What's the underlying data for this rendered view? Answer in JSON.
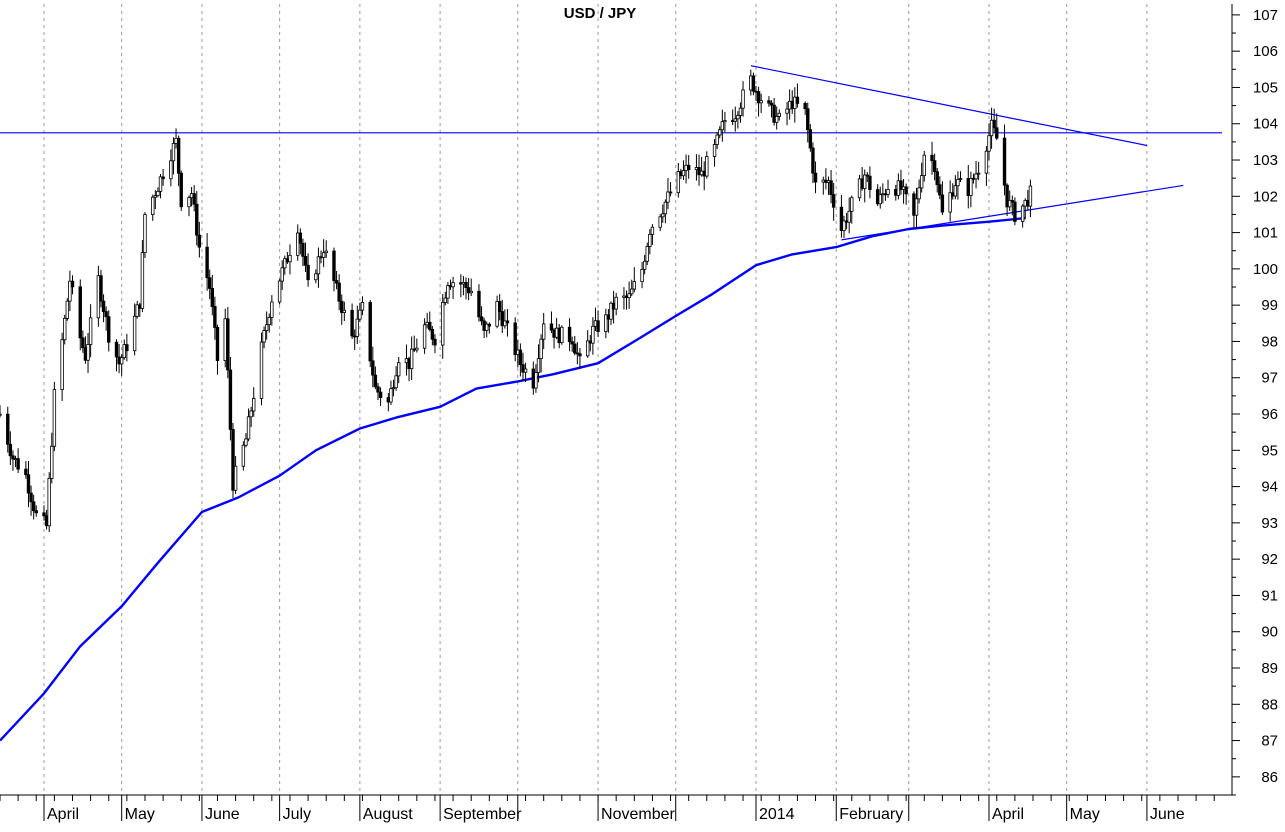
{
  "chart_data": {
    "type": "line",
    "title": "USD / JPY",
    "xlabel": "",
    "ylabel": "",
    "ylim": [
      85.5,
      107.3
    ],
    "yticks": [
      86,
      87,
      88,
      89,
      90,
      91,
      92,
      93,
      94,
      95,
      96,
      97,
      98,
      99,
      100,
      101,
      102,
      103,
      104,
      105,
      106,
      107
    ],
    "y_axis_side": "right",
    "grid": "vertical dashed lines at month starts",
    "legend": "none",
    "x_range": [
      "2013-03-15",
      "2014-06-30"
    ],
    "month_starts": [
      "2013-04-01",
      "2013-05-01",
      "2013-06-01",
      "2013-07-01",
      "2013-08-01",
      "2013-09-01",
      "2013-10-01",
      "2013-11-01",
      "2013-12-01",
      "2014-01-01",
      "2014-02-01",
      "2014-03-01",
      "2014-04-01",
      "2014-05-01",
      "2014-06-01"
    ],
    "month_labels": [
      "April",
      "May",
      "June",
      "July",
      "August",
      "September",
      "",
      "November",
      "",
      "2014",
      "February",
      "",
      "April",
      "May",
      "June"
    ],
    "colors": {
      "price": "#000000",
      "moving_average": "#0000ff",
      "trendlines": "#0000ff",
      "grid": "#999999"
    },
    "series": [
      {
        "style": "bars",
        "values_note": "daily close approximations",
        "points": [
          [
            "2013-03-15",
            96.0
          ],
          [
            "2013-03-20",
            94.8
          ],
          [
            "2013-03-25",
            94.3
          ],
          [
            "2013-03-29",
            93.2
          ],
          [
            "2013-04-02",
            92.9
          ],
          [
            "2013-04-05",
            96.5
          ],
          [
            "2013-04-08",
            98.0
          ],
          [
            "2013-04-11",
            99.7
          ],
          [
            "2013-04-15",
            98.1
          ],
          [
            "2013-04-17",
            97.6
          ],
          [
            "2013-04-22",
            99.7
          ],
          [
            "2013-04-26",
            98.2
          ],
          [
            "2013-04-30",
            97.4
          ],
          [
            "2013-05-03",
            97.9
          ],
          [
            "2013-05-08",
            99.1
          ],
          [
            "2013-05-10",
            101.5
          ],
          [
            "2013-05-15",
            102.3
          ],
          [
            "2013-05-20",
            103.2
          ],
          [
            "2013-05-22",
            103.5
          ],
          [
            "2013-05-24",
            101.9
          ],
          [
            "2013-05-28",
            102.1
          ],
          [
            "2013-05-31",
            100.6
          ],
          [
            "2013-06-04",
            99.5
          ],
          [
            "2013-06-07",
            97.5
          ],
          [
            "2013-06-10",
            98.6
          ],
          [
            "2013-06-13",
            94.1
          ],
          [
            "2013-06-18",
            95.3
          ],
          [
            "2013-06-24",
            97.8
          ],
          [
            "2013-06-28",
            99.2
          ],
          [
            "2013-07-03",
            100.1
          ],
          [
            "2013-07-08",
            101.2
          ],
          [
            "2013-07-12",
            99.5
          ],
          [
            "2013-07-18",
            100.6
          ],
          [
            "2013-07-23",
            99.4
          ],
          [
            "2013-07-29",
            98.1
          ],
          [
            "2013-08-02",
            98.9
          ],
          [
            "2013-08-07",
            96.7
          ],
          [
            "2013-08-12",
            96.3
          ],
          [
            "2013-08-16",
            97.6
          ],
          [
            "2013-08-20",
            97.4
          ],
          [
            "2013-08-26",
            98.4
          ],
          [
            "2013-08-30",
            98.1
          ],
          [
            "2013-09-04",
            99.7
          ],
          [
            "2013-09-09",
            99.6
          ],
          [
            "2013-09-13",
            99.4
          ],
          [
            "2013-09-18",
            98.2
          ],
          [
            "2013-09-23",
            99.0
          ],
          [
            "2013-09-27",
            98.3
          ],
          [
            "2013-10-02",
            97.4
          ],
          [
            "2013-10-07",
            96.9
          ],
          [
            "2013-10-11",
            98.6
          ],
          [
            "2013-10-16",
            98.2
          ],
          [
            "2013-10-22",
            98.1
          ],
          [
            "2013-10-25",
            97.4
          ],
          [
            "2013-10-30",
            98.3
          ],
          [
            "2013-11-04",
            98.6
          ],
          [
            "2013-11-08",
            99.1
          ],
          [
            "2013-11-13",
            99.2
          ],
          [
            "2013-11-18",
            100.0
          ],
          [
            "2013-11-21",
            101.1
          ],
          [
            "2013-11-26",
            101.7
          ],
          [
            "2013-12-02",
            102.5
          ],
          [
            "2013-12-06",
            102.8
          ],
          [
            "2013-12-11",
            102.6
          ],
          [
            "2013-12-16",
            103.3
          ],
          [
            "2013-12-20",
            104.1
          ],
          [
            "2013-12-24",
            104.3
          ],
          [
            "2013-12-30",
            105.2
          ],
          [
            "2014-01-02",
            104.8
          ],
          [
            "2014-01-07",
            104.3
          ],
          [
            "2014-01-10",
            104.1
          ],
          [
            "2014-01-15",
            104.6
          ],
          [
            "2014-01-20",
            104.3
          ],
          [
            "2014-01-24",
            102.3
          ],
          [
            "2014-01-29",
            102.4
          ],
          [
            "2014-02-03",
            101.1
          ],
          [
            "2014-02-06",
            101.6
          ],
          [
            "2014-02-12",
            102.6
          ],
          [
            "2014-02-17",
            101.8
          ],
          [
            "2014-02-21",
            102.3
          ],
          [
            "2014-02-26",
            102.2
          ],
          [
            "2014-03-03",
            101.4
          ],
          [
            "2014-03-07",
            103.2
          ],
          [
            "2014-03-11",
            102.9
          ],
          [
            "2014-03-14",
            101.5
          ],
          [
            "2014-03-19",
            102.4
          ],
          [
            "2014-03-24",
            102.2
          ],
          [
            "2014-03-28",
            102.8
          ],
          [
            "2014-04-02",
            103.9
          ],
          [
            "2014-04-04",
            103.6
          ],
          [
            "2014-04-08",
            101.9
          ],
          [
            "2014-04-11",
            101.5
          ],
          [
            "2014-04-15",
            101.8
          ],
          [
            "2014-04-18",
            102.2
          ]
        ]
      },
      {
        "style": "line",
        "points": [
          [
            "2013-03-15",
            87.0
          ],
          [
            "2013-04-01",
            88.3
          ],
          [
            "2013-04-15",
            89.6
          ],
          [
            "2013-05-01",
            90.7
          ],
          [
            "2013-05-15",
            91.9
          ],
          [
            "2013-06-01",
            93.3
          ],
          [
            "2013-06-15",
            93.7
          ],
          [
            "2013-07-01",
            94.3
          ],
          [
            "2013-07-15",
            95.0
          ],
          [
            "2013-08-01",
            95.6
          ],
          [
            "2013-08-15",
            95.9
          ],
          [
            "2013-09-01",
            96.2
          ],
          [
            "2013-09-15",
            96.7
          ],
          [
            "2013-10-01",
            96.9
          ],
          [
            "2013-10-15",
            97.1
          ],
          [
            "2013-11-01",
            97.4
          ],
          [
            "2013-11-15",
            98.0
          ],
          [
            "2013-12-01",
            98.7
          ],
          [
            "2013-12-15",
            99.3
          ],
          [
            "2014-01-01",
            100.1
          ],
          [
            "2014-01-15",
            100.4
          ],
          [
            "2014-02-01",
            100.6
          ],
          [
            "2014-02-15",
            100.9
          ],
          [
            "2014-03-01",
            101.1
          ],
          [
            "2014-03-15",
            101.2
          ],
          [
            "2014-04-01",
            101.3
          ],
          [
            "2014-04-15",
            101.4
          ]
        ]
      }
    ],
    "annotations": [
      {
        "type": "horizontal_line",
        "y": 103.75,
        "x_from": "2013-03-15",
        "x_to": "2014-06-30"
      },
      {
        "type": "trendline",
        "from": [
          "2013-12-30",
          105.6
        ],
        "to": [
          "2014-06-01",
          103.4
        ]
      },
      {
        "type": "trendline",
        "from": [
          "2014-02-03",
          100.8
        ],
        "to": [
          "2014-06-15",
          102.3
        ]
      }
    ]
  }
}
